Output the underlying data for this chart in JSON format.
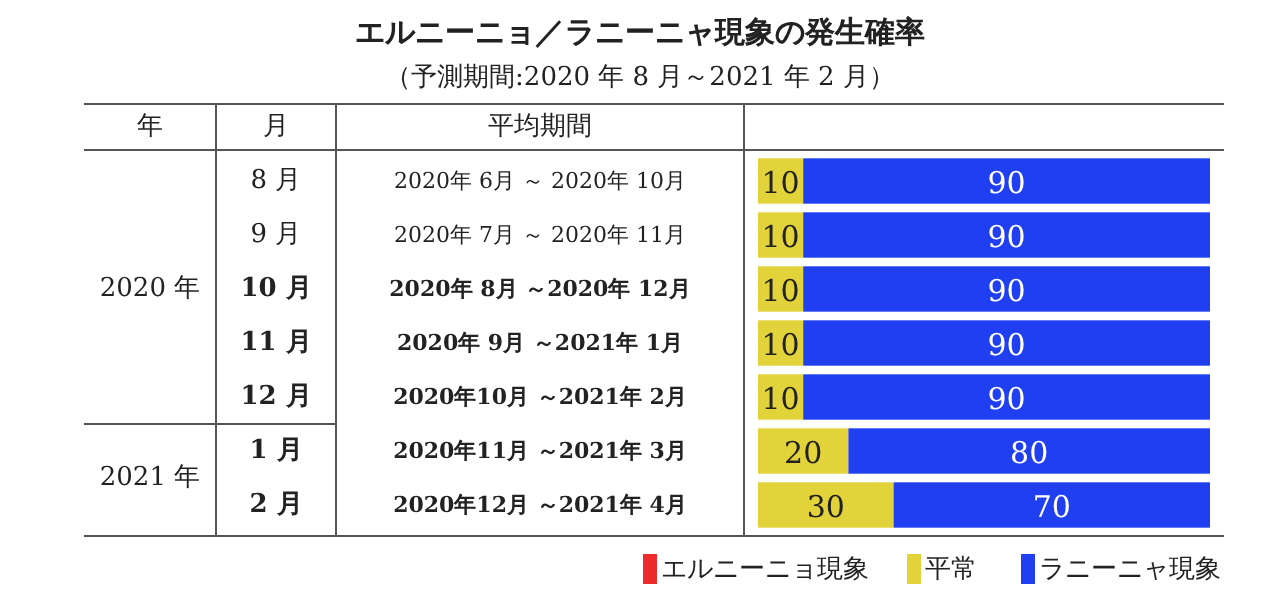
{
  "chart_data": {
    "type": "bar",
    "orientation": "horizontal",
    "stacked": true,
    "title": "エルニーニョ／ラニーニャ現象の発生確率",
    "subtitle": "（予測期間:2020 年 8 月～2021 年 2 月）",
    "categories": [
      "2020年 6月 ～ 2020年 10月",
      "2020年 7月 ～ 2020年 11月",
      "2020年 8月 ～2020年 12月",
      "2020年 9月 ～2021年 1月",
      "2020年10月 ～2021年 2月",
      "2020年11月 ～2021年 3月",
      "2020年12月 ～2021年 4月"
    ],
    "annotations": [
      "年",
      "月",
      "平均期間",
      "2020 年",
      "2021 年",
      "8 月",
      "9 月",
      "10 月",
      "11 月",
      "12 月",
      "1 月",
      "2 月"
    ],
    "series": [
      {
        "name": "エルニーニョ現象",
        "color": "#ee2b2b",
        "values": [
          0,
          0,
          0,
          0,
          0,
          0,
          0
        ],
        "value_labels": [
          null,
          null,
          null,
          null,
          null,
          null,
          null
        ]
      },
      {
        "name": "平常",
        "color": "#e3d33a",
        "values": [
          10,
          10,
          10,
          10,
          10,
          20,
          30
        ],
        "value_labels": [
          "10",
          "10",
          "10",
          "10",
          "10",
          "20",
          "30"
        ]
      },
      {
        "name": "ラニーニャ現象",
        "color": "#1f3ff0",
        "values": [
          90,
          90,
          90,
          90,
          90,
          80,
          70
        ],
        "value_labels": [
          "90",
          "90",
          "90",
          "90",
          "90",
          "80",
          "70"
        ]
      }
    ],
    "legend": "bottom"
  }
}
